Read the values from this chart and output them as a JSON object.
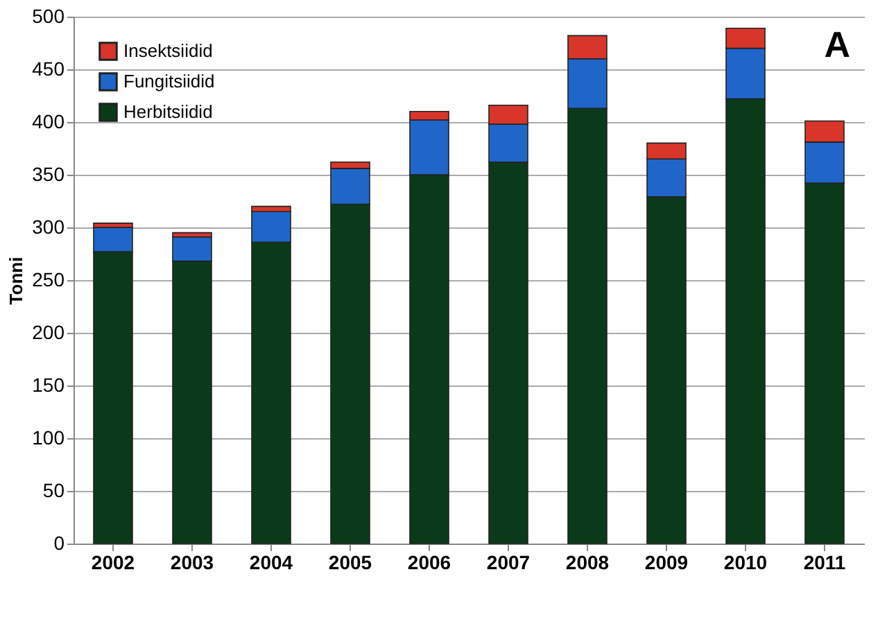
{
  "chart_data": {
    "type": "bar",
    "stacked": true,
    "ylabel": "Tonni",
    "annotations": [
      "A"
    ],
    "categories": [
      "2002",
      "2003",
      "2004",
      "2005",
      "2006",
      "2007",
      "2008",
      "2009",
      "2010",
      "2011"
    ],
    "series": [
      {
        "name": "Herbitsiidid",
        "color": "#0a3a1a",
        "values": [
          277,
          268,
          286,
          322,
          350,
          362,
          413,
          329,
          422,
          342
        ]
      },
      {
        "name": "Fungitsiidid",
        "color": "#1f66c8",
        "values": [
          23,
          23,
          29,
          34,
          52,
          36,
          47,
          36,
          48,
          39
        ]
      },
      {
        "name": "Insektsiidid",
        "color": "#d9362b",
        "values": [
          4,
          4,
          5,
          6,
          8,
          18,
          22,
          15,
          19,
          20
        ]
      }
    ],
    "ylim": [
      0,
      500
    ],
    "yticks": [
      0,
      50,
      100,
      150,
      200,
      250,
      300,
      350,
      400,
      450,
      500
    ],
    "grid": "y",
    "legend": "top left"
  }
}
